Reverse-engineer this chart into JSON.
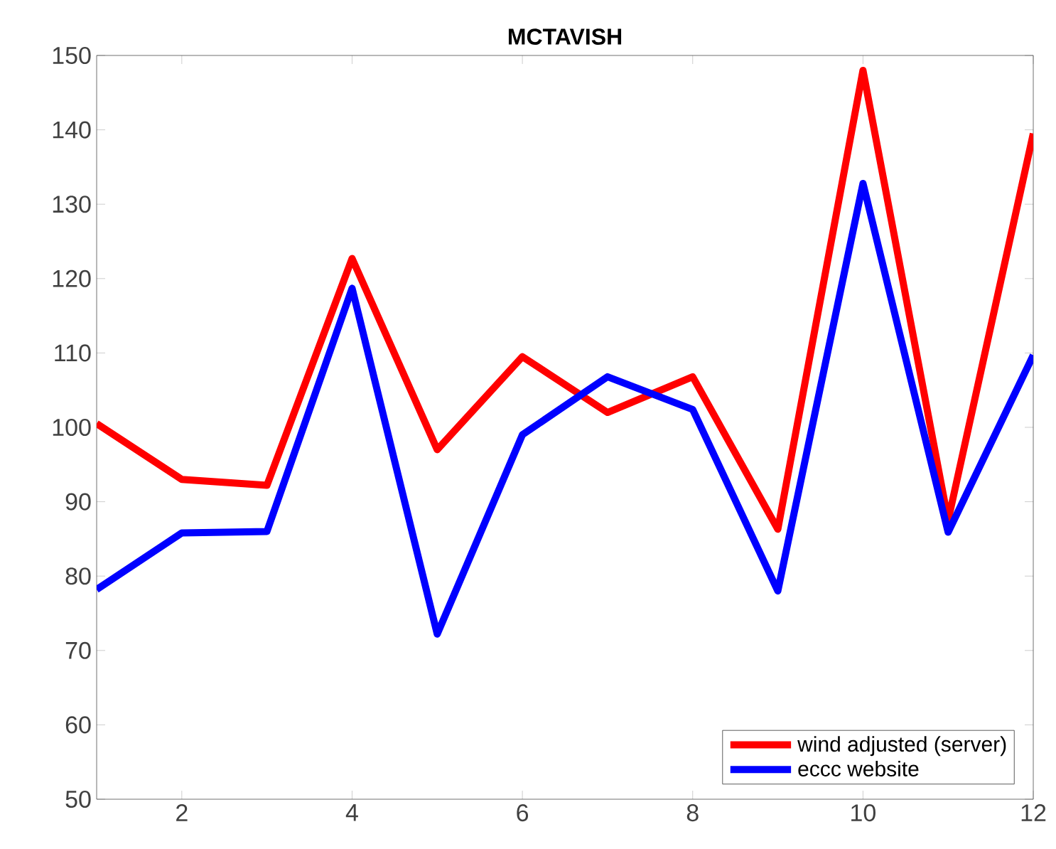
{
  "chart_data": {
    "type": "line",
    "title": "MCTAVISH",
    "x": [
      1,
      2,
      3,
      4,
      5,
      6,
      7,
      8,
      9,
      10,
      11,
      12
    ],
    "series": [
      {
        "name": "wind adjusted (server)",
        "color": "#ff0000",
        "values": [
          100.5,
          93,
          92.2,
          122.7,
          97,
          109.5,
          102,
          106.8,
          86.3,
          148,
          87.5,
          139.5
        ]
      },
      {
        "name": "eccc website",
        "color": "#0000ff",
        "values": [
          78.2,
          85.8,
          86,
          118.7,
          72.2,
          99,
          106.8,
          102.4,
          78,
          132.8,
          85.9,
          109.7
        ]
      }
    ],
    "xlim": [
      1,
      12
    ],
    "ylim": [
      50,
      150
    ],
    "xticks": [
      2,
      4,
      6,
      8,
      10,
      12
    ],
    "yticks": [
      50,
      60,
      70,
      80,
      90,
      100,
      110,
      120,
      130,
      140,
      150
    ],
    "grid": false,
    "legend": "bottom right",
    "marker": "none",
    "line_style": "solid"
  }
}
